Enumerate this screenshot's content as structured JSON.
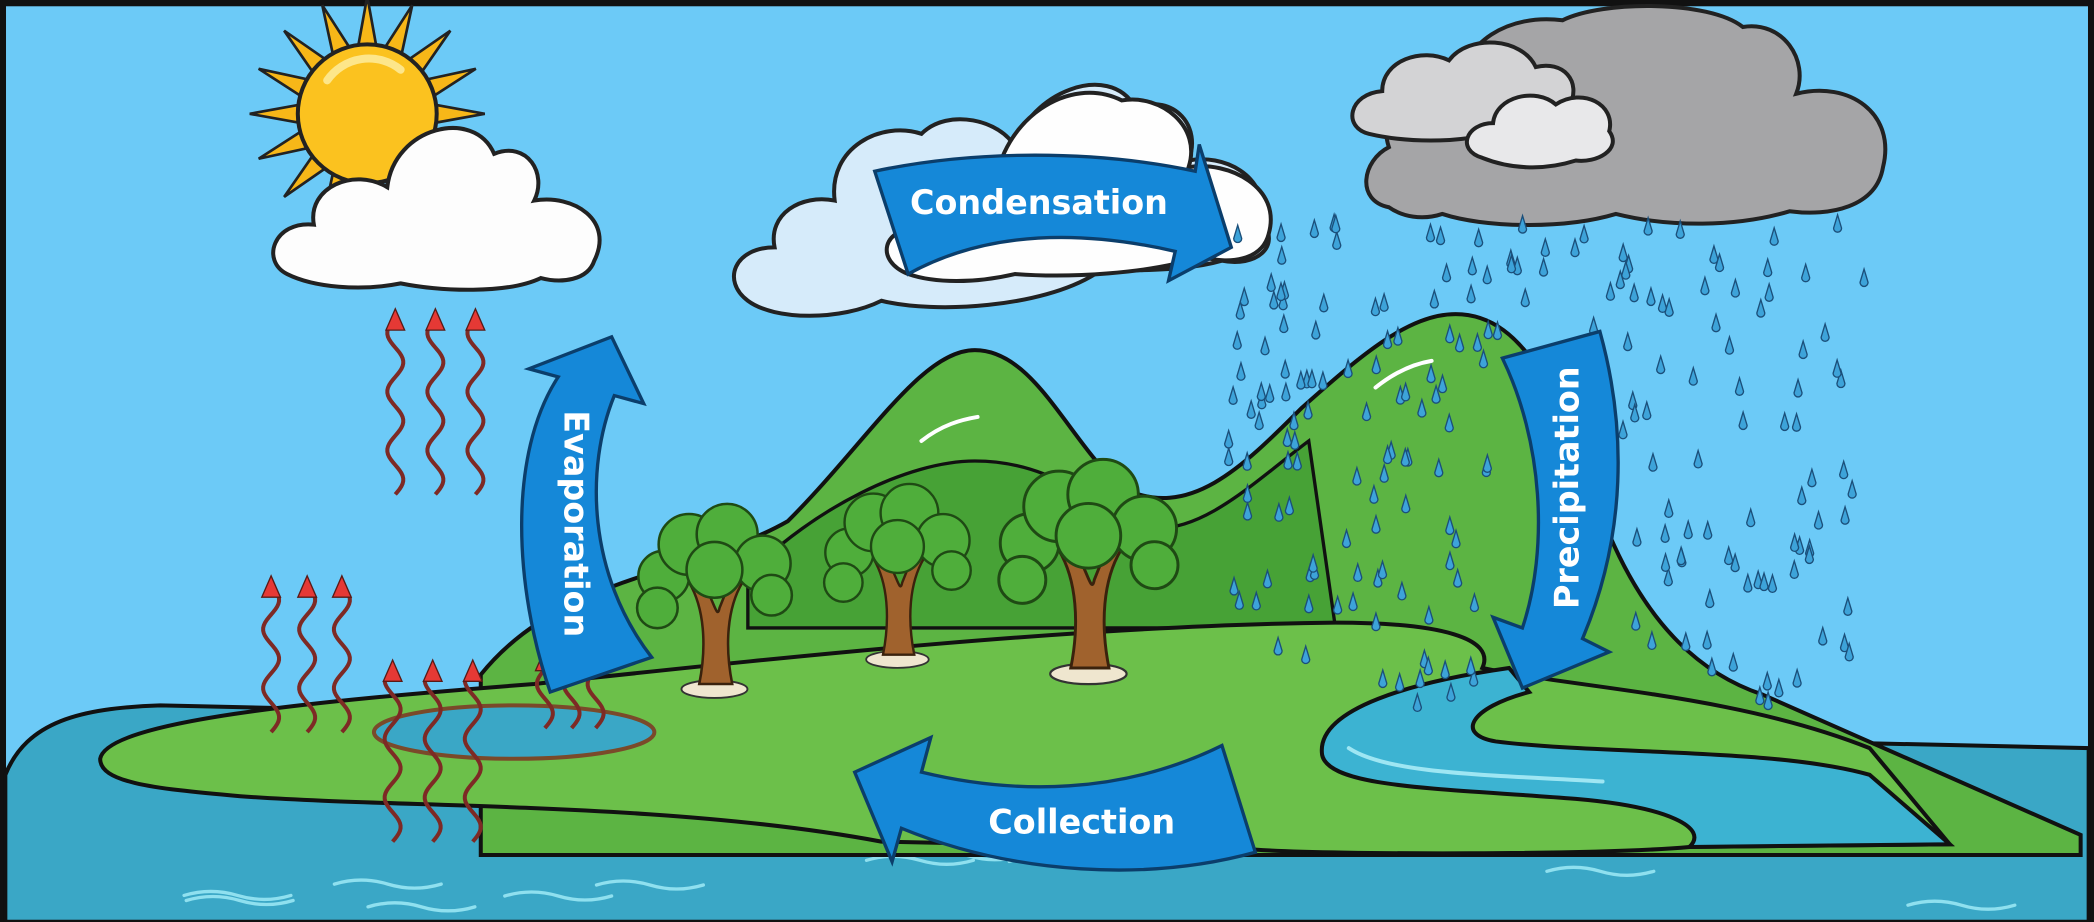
{
  "stages": [
    {
      "label": "Condensation"
    },
    {
      "label": "Evaporation"
    },
    {
      "label": "Precipitation"
    },
    {
      "label": "Collection"
    }
  ]
}
